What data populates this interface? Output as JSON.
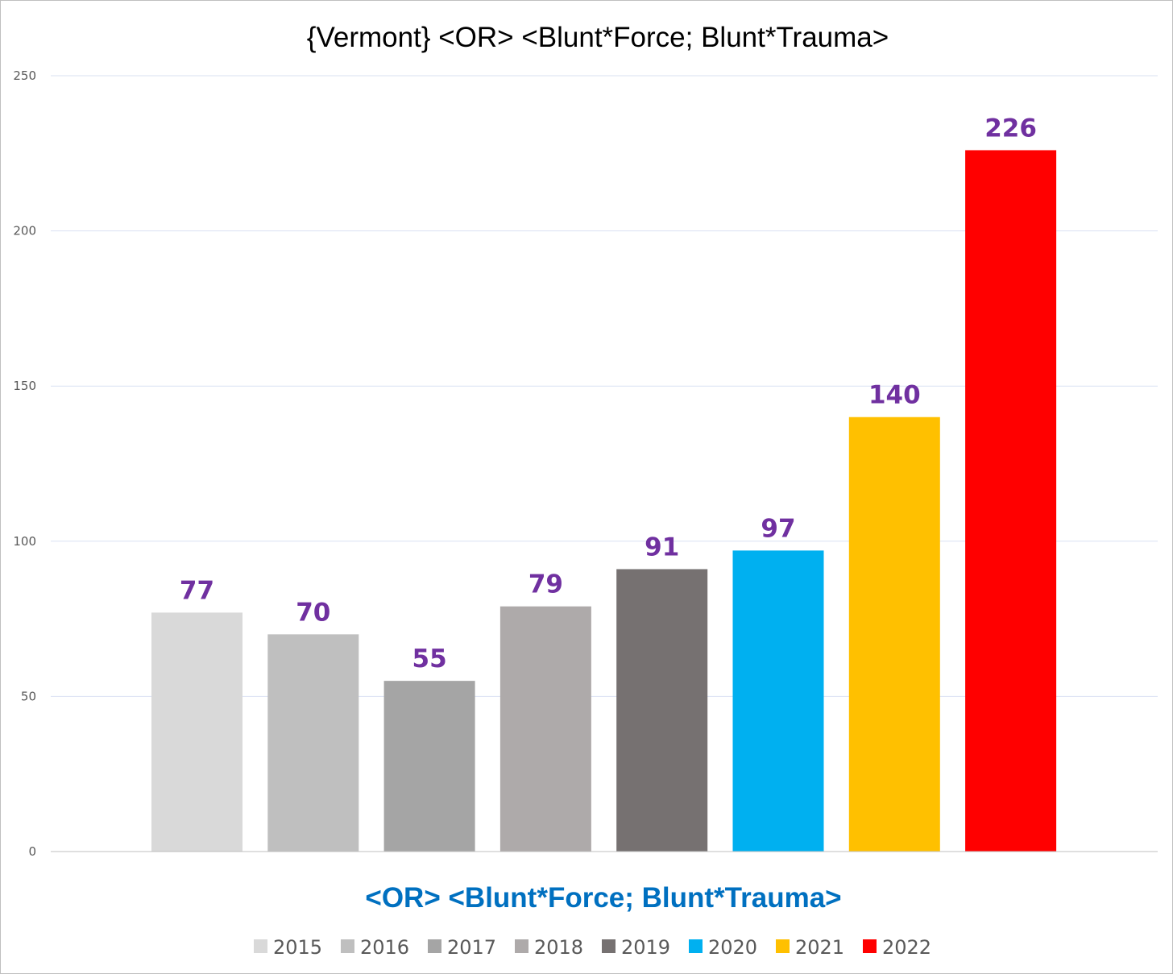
{
  "chart_data": {
    "type": "bar",
    "title": "{Vermont}  <OR> <Blunt*Force; Blunt*Trauma>",
    "xlabel": "<OR> <Blunt*Force; Blunt*Trauma>",
    "ylabel": "",
    "ylim": [
      0,
      250
    ],
    "yticks": [
      "0",
      "50",
      "100",
      "150",
      "200",
      "250"
    ],
    "grid": true,
    "legend_position": "bottom",
    "label_color": "#7030a0",
    "xlabel_color": "#0070c0",
    "series": [
      {
        "name": "2015",
        "value": 77,
        "label": "77",
        "color": "#d9d9d9"
      },
      {
        "name": "2016",
        "value": 70,
        "label": "70",
        "color": "#bfbfbf"
      },
      {
        "name": "2017",
        "value": 55,
        "label": "55",
        "color": "#a5a5a5"
      },
      {
        "name": "2018",
        "value": 79,
        "label": "79",
        "color": "#aeaaaa"
      },
      {
        "name": "2019",
        "value": 91,
        "label": "91",
        "color": "#767171"
      },
      {
        "name": "2020",
        "value": 97,
        "label": "97",
        "color": "#00b0f0"
      },
      {
        "name": "2021",
        "value": 140,
        "label": "140",
        "color": "#ffc000"
      },
      {
        "name": "2022",
        "value": 226,
        "label": "226",
        "color": "#ff0000"
      }
    ]
  }
}
